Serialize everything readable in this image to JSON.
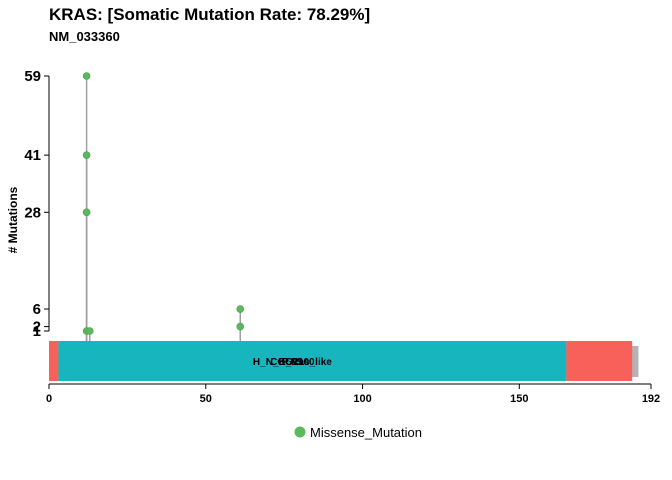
{
  "chart_data": {
    "type": "lollipop",
    "title": "KRAS: [Somatic Mutation Rate: 78.29%]",
    "subtitle": "NM_033360",
    "ylabel": "# Mutations",
    "xlabel": "",
    "xlim": [
      0,
      192
    ],
    "x_ticks": [
      0,
      50,
      100,
      150,
      192
    ],
    "y_ticks": [
      1,
      2,
      6,
      28,
      41,
      59
    ],
    "grid": false,
    "legend_position": "bottom",
    "protein_length": 188,
    "series": [
      {
        "name": "Missense_Mutation",
        "color": "#5CB85C",
        "points": [
          {
            "x": 12,
            "y": 59
          },
          {
            "x": 12,
            "y": 41
          },
          {
            "x": 12,
            "y": 28
          },
          {
            "x": 12,
            "y": 1
          },
          {
            "x": 13,
            "y": 1
          },
          {
            "x": 61,
            "y": 6
          },
          {
            "x": 61,
            "y": 2
          }
        ]
      }
    ],
    "domains": [
      {
        "label": "",
        "start": 0,
        "end": 3,
        "color": "#F8615A"
      },
      {
        "label": "H_N_K_Ras_like",
        "start": 3,
        "end": 165,
        "color": "#17B6BE"
      },
      {
        "label": "RAS",
        "start": 3,
        "end": 165,
        "color": "#17B6BE"
      },
      {
        "label": "COG1100",
        "start": 3,
        "end": 165,
        "color": "#17B6BE"
      },
      {
        "label": "",
        "start": 165,
        "end": 186,
        "color": "#F8615A"
      }
    ],
    "backbone_color": "#B3B3B3",
    "stem_color": "#A0A0A0"
  }
}
